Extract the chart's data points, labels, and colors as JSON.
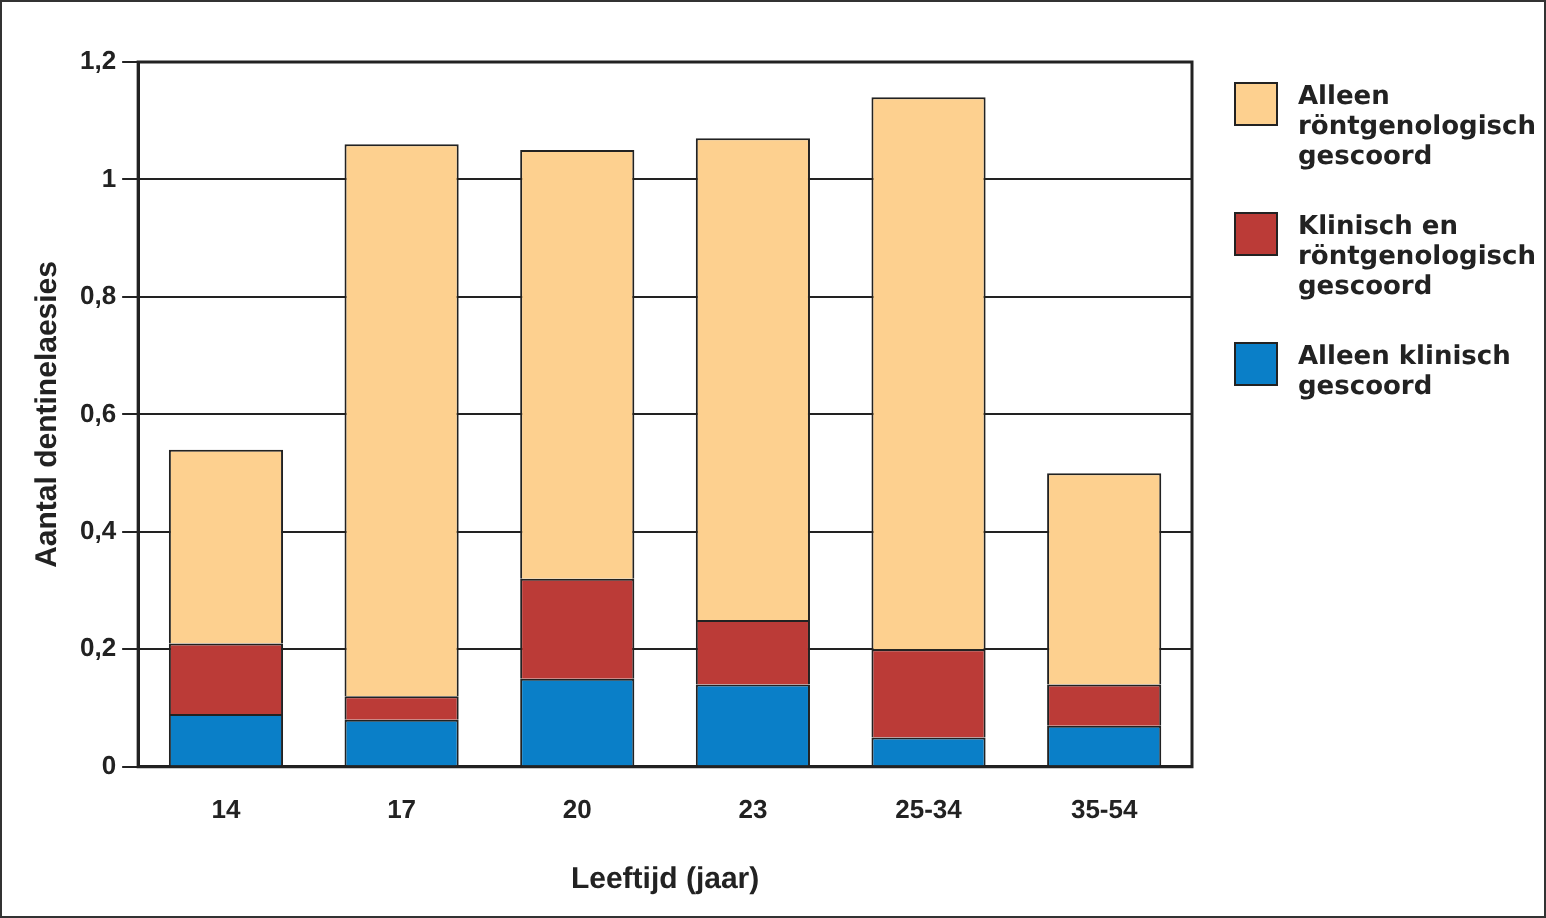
{
  "chart_data": {
    "type": "bar",
    "stacked": true,
    "xlabel": "Leeftijd (jaar)",
    "ylabel": "Aantal dentinelaesies",
    "categories": [
      "14",
      "17",
      "20",
      "23",
      "25-34",
      "35-54"
    ],
    "series": [
      {
        "name": "Alleen klinisch gescoord",
        "color": "#0a7fc8",
        "values": [
          0.09,
          0.08,
          0.15,
          0.14,
          0.05,
          0.07
        ]
      },
      {
        "name": "Klinisch en röntgenologisch gescoord",
        "color": "#bb3b37",
        "values": [
          0.12,
          0.04,
          0.17,
          0.11,
          0.15,
          0.07
        ]
      },
      {
        "name": "Alleen röntgenologisch gescoord",
        "color": "#fdd08f",
        "values": [
          0.33,
          0.94,
          0.73,
          0.82,
          0.94,
          0.36
        ]
      }
    ],
    "ylim": [
      0,
      1.2
    ],
    "yticks": [
      {
        "value": 0,
        "label": "0"
      },
      {
        "value": 0.2,
        "label": "0,2"
      },
      {
        "value": 0.4,
        "label": "0,4"
      },
      {
        "value": 0.6,
        "label": "0,6"
      },
      {
        "value": 0.8,
        "label": "0,8"
      },
      {
        "value": 1,
        "label": "1"
      },
      {
        "value": 1.2,
        "label": "1,2"
      }
    ],
    "grid": "y",
    "legend": "right"
  }
}
